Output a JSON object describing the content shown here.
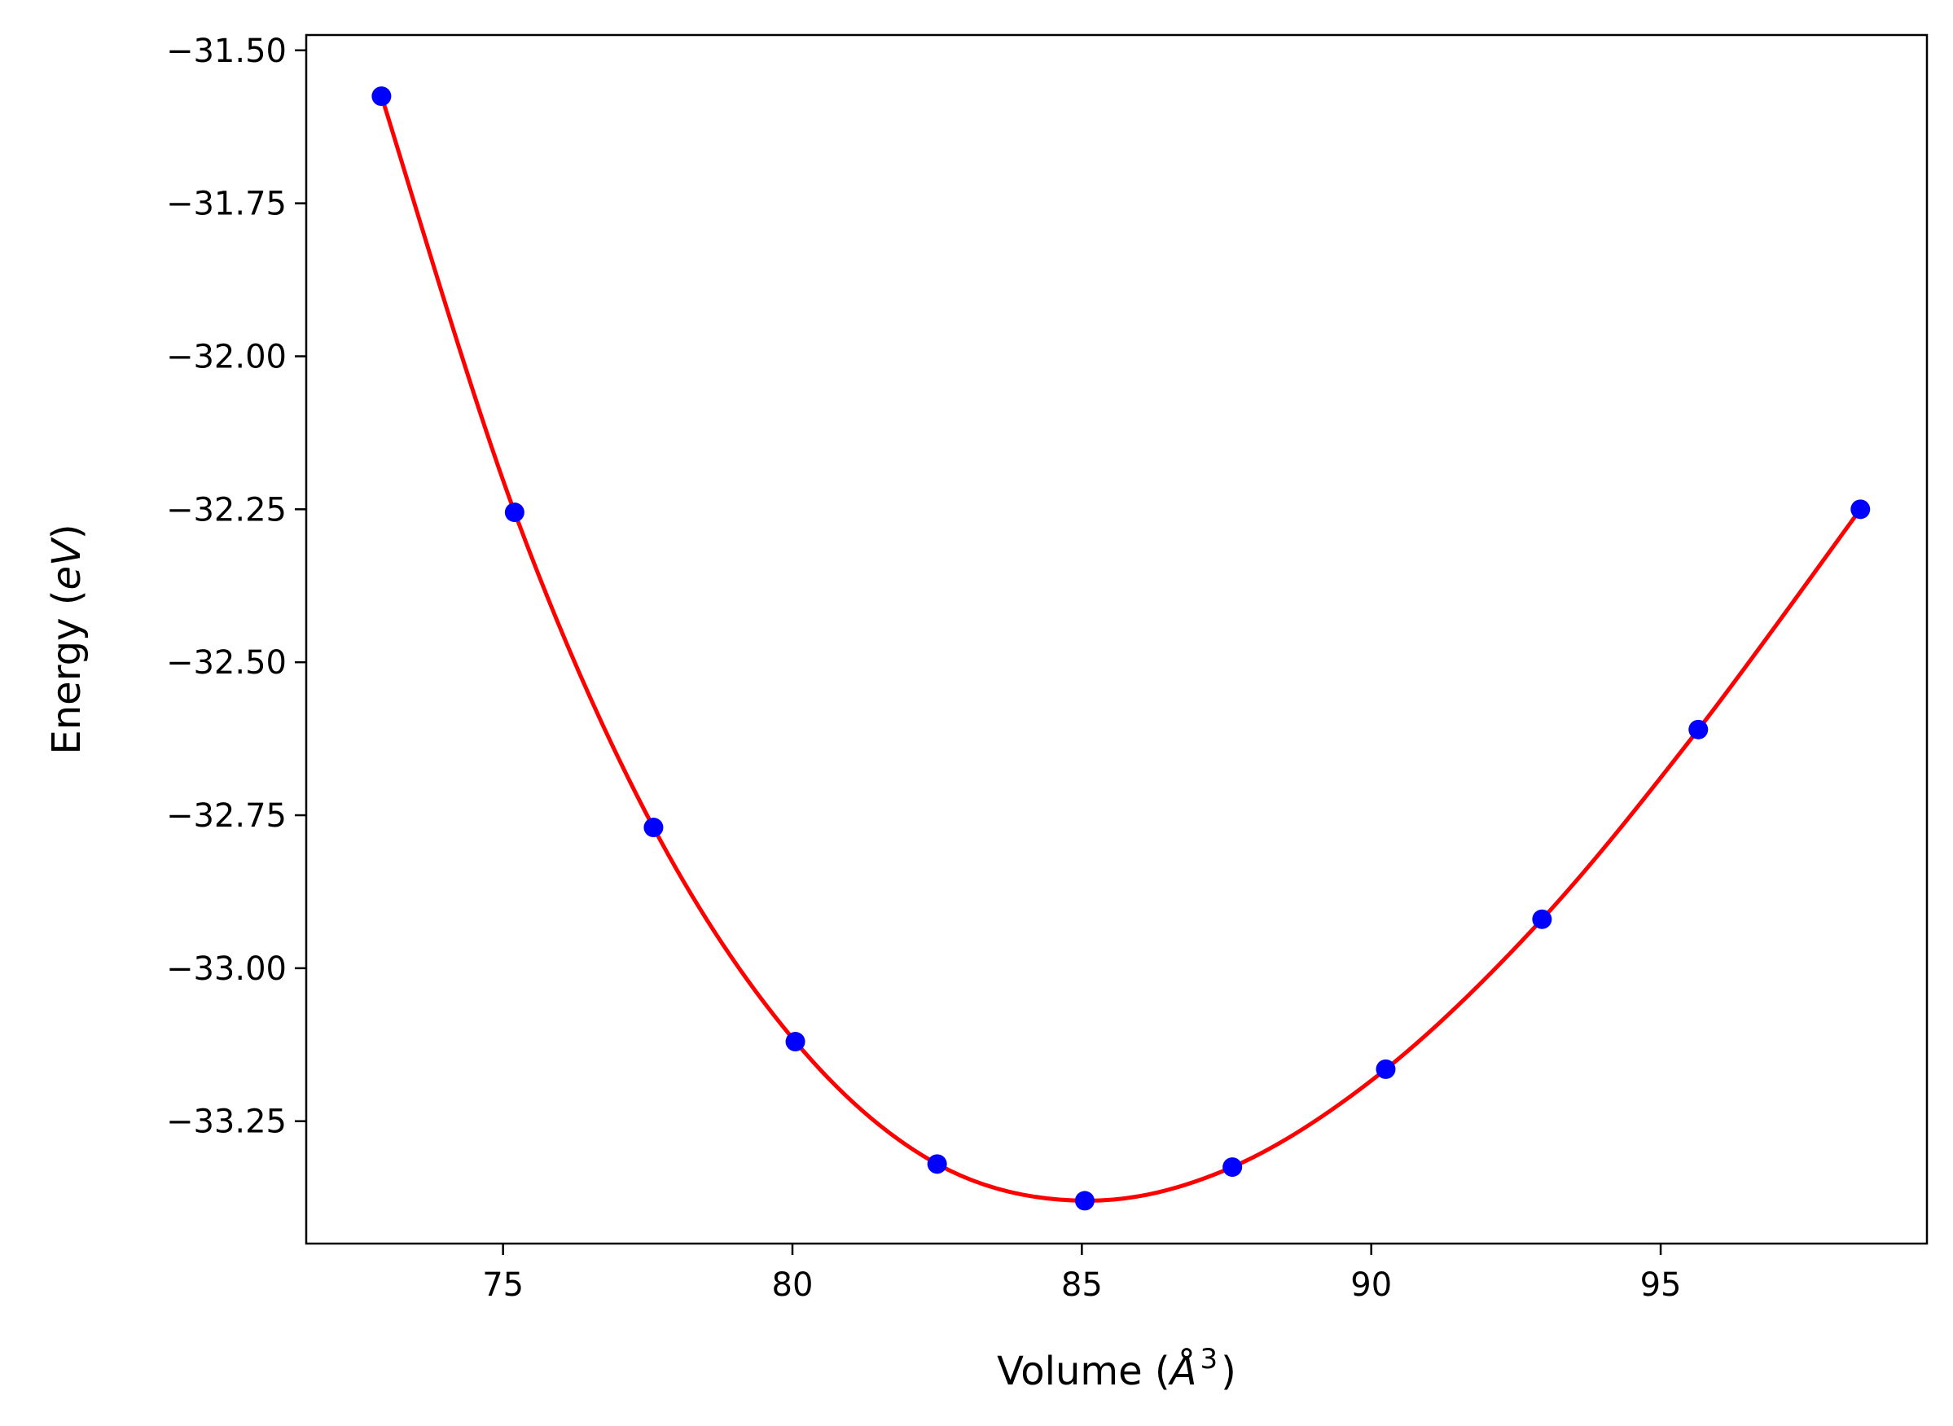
{
  "chart_data": {
    "type": "scatter",
    "title": "",
    "xlabel": {
      "prefix": "Volume (",
      "var": "Å",
      "sup": "3",
      "suffix": ")"
    },
    "ylabel": {
      "prefix": "Energy (",
      "var": "eV",
      "suffix": ")"
    },
    "xlim": [
      71.6,
      99.6
    ],
    "ylim": [
      -33.45,
      -31.475
    ],
    "grid": false,
    "legend": "none",
    "x_ticks": [
      75,
      80,
      85,
      90,
      95
    ],
    "x_tick_labels": [
      "75",
      "80",
      "85",
      "90",
      "95"
    ],
    "y_ticks": [
      -31.5,
      -31.75,
      -32.0,
      -32.25,
      -32.5,
      -32.75,
      -33.0,
      -33.25
    ],
    "y_tick_labels": [
      "−31.50",
      "−31.75",
      "−32.00",
      "−32.25",
      "−32.50",
      "−32.75",
      "−33.00",
      "−33.25"
    ],
    "series": [
      {
        "kind": "points",
        "color": "#0000ff",
        "x": [
          72.9,
          75.2,
          77.6,
          80.05,
          82.5,
          85.05,
          87.6,
          90.25,
          92.95,
          95.65,
          98.45
        ],
        "y": [
          -31.575,
          -32.255,
          -32.77,
          -33.12,
          -33.32,
          -33.38,
          -33.325,
          -33.165,
          -32.92,
          -32.61,
          -32.25
        ]
      },
      {
        "kind": "fit-curve",
        "color": "#ff0000",
        "model": "birch-murnaghan",
        "params": {
          "E0": -33.375,
          "V0": 85.3,
          "B0": 0.09,
          "Bp": 4.5
        },
        "x_range": [
          72.9,
          98.45
        ]
      }
    ]
  }
}
